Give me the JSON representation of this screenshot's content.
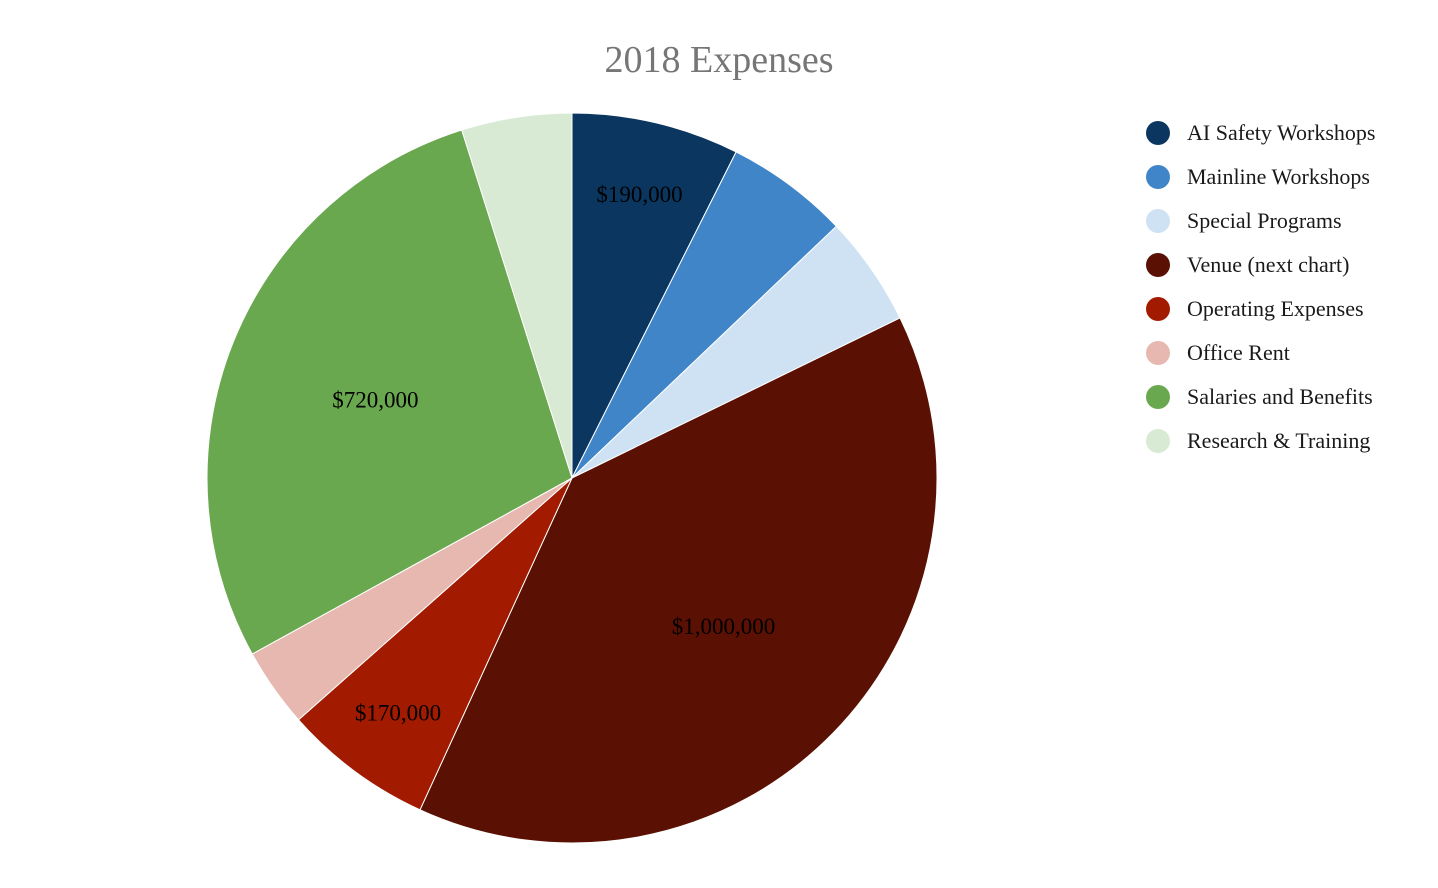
{
  "chart_data": {
    "type": "pie",
    "title": "2018 Expenses",
    "start": "12 o'clock",
    "direction": "clockwise",
    "legend_position": "right",
    "slices": [
      {
        "name": "AI Safety Workshops",
        "value": 190000,
        "data_label": "$190,000",
        "color": "#0a3660"
      },
      {
        "name": "Mainline Workshops",
        "value": 140000,
        "data_label": "",
        "color": "#3f85c8"
      },
      {
        "name": "Special Programs",
        "value": 125000,
        "data_label": "",
        "color": "#cfe2f4"
      },
      {
        "name": "Venue (next chart)",
        "value": 1000000,
        "data_label": "$1,000,000",
        "color": "#5a1002"
      },
      {
        "name": "Operating Expenses",
        "value": 170000,
        "data_label": "$170,000",
        "color": "#a21b00"
      },
      {
        "name": "Office Rent",
        "value": 90000,
        "data_label": "",
        "color": "#e6b8b0"
      },
      {
        "name": "Salaries and Benefits",
        "value": 720000,
        "data_label": "$720,000",
        "color": "#6aa84f"
      },
      {
        "name": "Research & Training",
        "value": 125000,
        "data_label": "",
        "color": "#d8ead3"
      }
    ]
  }
}
